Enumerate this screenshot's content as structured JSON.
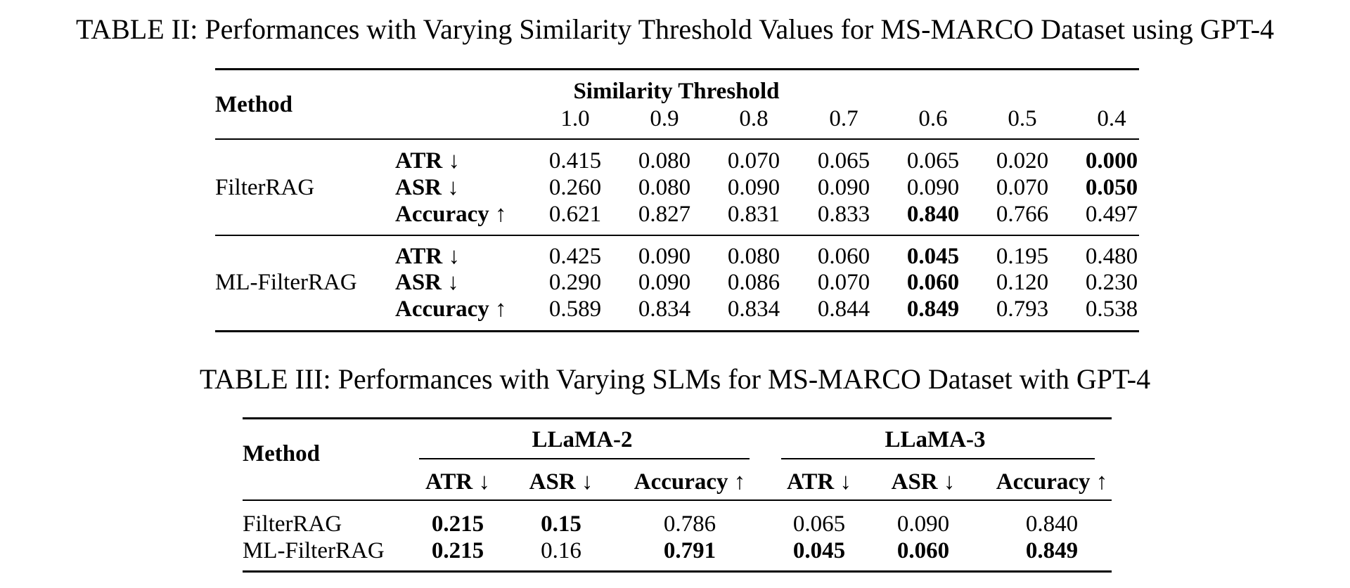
{
  "table2": {
    "caption": "TABLE II: Performances with Varying Similarity Threshold Values for MS-MARCO Dataset using GPT-4",
    "method_header": "Method",
    "group_header": "Similarity Threshold",
    "thresholds": [
      "1.0",
      "0.9",
      "0.8",
      "0.7",
      "0.6",
      "0.5",
      "0.4"
    ],
    "groups": [
      {
        "method": "FilterRAG",
        "rows": [
          {
            "metric": "ATR ↓",
            "values": [
              "0.415",
              "0.080",
              "0.070",
              "0.065",
              "0.065",
              "0.020",
              "0.000"
            ],
            "bold": [
              6
            ]
          },
          {
            "metric": "ASR ↓",
            "values": [
              "0.260",
              "0.080",
              "0.090",
              "0.090",
              "0.090",
              "0.070",
              "0.050"
            ],
            "bold": [
              6
            ]
          },
          {
            "metric": "Accuracy ↑",
            "values": [
              "0.621",
              "0.827",
              "0.831",
              "0.833",
              "0.840",
              "0.766",
              "0.497"
            ],
            "bold": [
              4
            ]
          }
        ]
      },
      {
        "method": "ML-FilterRAG",
        "rows": [
          {
            "metric": "ATR ↓",
            "values": [
              "0.425",
              "0.090",
              "0.080",
              "0.060",
              "0.045",
              "0.195",
              "0.480"
            ],
            "bold": [
              4
            ]
          },
          {
            "metric": "ASR ↓",
            "values": [
              "0.290",
              "0.090",
              "0.086",
              "0.070",
              "0.060",
              "0.120",
              "0.230"
            ],
            "bold": [
              4
            ]
          },
          {
            "metric": "Accuracy ↑",
            "values": [
              "0.589",
              "0.834",
              "0.834",
              "0.844",
              "0.849",
              "0.793",
              "0.538"
            ],
            "bold": [
              4
            ]
          }
        ]
      }
    ]
  },
  "table3": {
    "caption": "TABLE III: Performances with Varying SLMs for MS-MARCO Dataset with GPT-4",
    "method_header": "Method",
    "model_groups": [
      "LLaMA-2",
      "LLaMA-3"
    ],
    "metric_headers": [
      "ATR ↓",
      "ASR ↓",
      "Accuracy ↑",
      "ATR ↓",
      "ASR ↓",
      "Accuracy ↑"
    ],
    "rows": [
      {
        "method": "FilterRAG",
        "values": [
          "0.215",
          "0.15",
          "0.786",
          "0.065",
          "0.090",
          "0.840"
        ],
        "bold": [
          0,
          1
        ]
      },
      {
        "method": "ML-FilterRAG",
        "values": [
          "0.215",
          "0.16",
          "0.791",
          "0.045",
          "0.060",
          "0.849"
        ],
        "bold": [
          0,
          2,
          3,
          4,
          5
        ]
      }
    ]
  }
}
